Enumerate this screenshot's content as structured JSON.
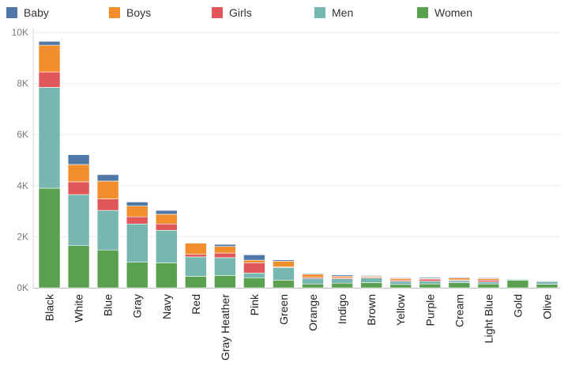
{
  "chart_data": {
    "type": "bar",
    "stacked": true,
    "categories": [
      "Black",
      "White",
      "Blue",
      "Gray",
      "Navy",
      "Red",
      "Gray Heather",
      "Pink",
      "Green",
      "Orange",
      "Indigo",
      "Brown",
      "Yellow",
      "Purple",
      "Cream",
      "Light Blue",
      "Gold",
      "Olive"
    ],
    "series": [
      {
        "name": "Women",
        "color": "#59a14f",
        "values": [
          3900,
          1650,
          1480,
          1000,
          980,
          450,
          480,
          380,
          300,
          150,
          180,
          200,
          130,
          150,
          200,
          150,
          290,
          140
        ]
      },
      {
        "name": "Men",
        "color": "#76b7b2",
        "values": [
          3950,
          2000,
          1550,
          1500,
          1270,
          760,
          700,
          200,
          490,
          220,
          170,
          180,
          120,
          110,
          80,
          80,
          40,
          110
        ]
      },
      {
        "name": "Girls",
        "color": "#e15759",
        "values": [
          600,
          500,
          450,
          280,
          250,
          100,
          180,
          400,
          30,
          40,
          40,
          30,
          50,
          80,
          30,
          70,
          10,
          20
        ]
      },
      {
        "name": "Boys",
        "color": "#f28e2b",
        "values": [
          1050,
          680,
          700,
          420,
          380,
          440,
          260,
          100,
          220,
          120,
          60,
          40,
          60,
          20,
          70,
          60,
          10,
          20
        ]
      },
      {
        "name": "Baby",
        "color": "#4e79a7",
        "values": [
          150,
          380,
          250,
          160,
          150,
          20,
          80,
          210,
          50,
          30,
          50,
          30,
          30,
          40,
          30,
          30,
          10,
          20
        ]
      }
    ],
    "legend_order": [
      "Baby",
      "Boys",
      "Girls",
      "Men",
      "Women"
    ],
    "ylim": [
      0,
      10000
    ],
    "yticks": [
      {
        "value": 0,
        "label": "0K"
      },
      {
        "value": 2000,
        "label": "2K"
      },
      {
        "value": 4000,
        "label": "4K"
      },
      {
        "value": 6000,
        "label": "6K"
      },
      {
        "value": 8000,
        "label": "8K"
      },
      {
        "value": 10000,
        "label": "10K"
      }
    ],
    "grid": true,
    "legend_position": "top"
  }
}
